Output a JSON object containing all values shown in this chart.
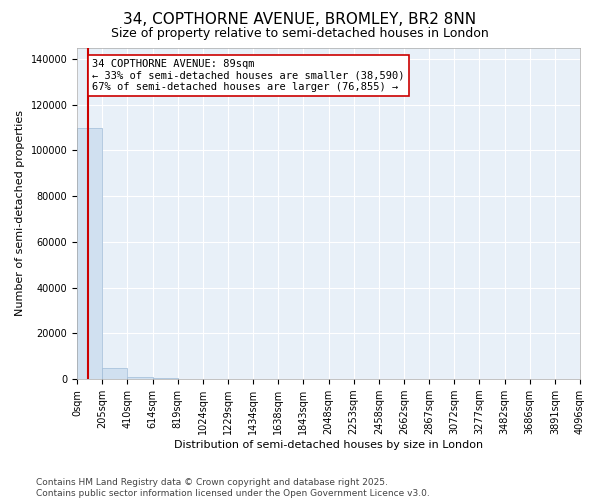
{
  "title": "34, COPTHORNE AVENUE, BROMLEY, BR2 8NN",
  "subtitle": "Size of property relative to semi-detached houses in London",
  "xlabel": "Distribution of semi-detached houses by size in London",
  "ylabel": "Number of semi-detached properties",
  "property_size": 89,
  "property_label": "34 COPTHORNE AVENUE: 89sqm",
  "pct_smaller": 33,
  "pct_larger": 67,
  "count_smaller": 38590,
  "count_larger": 76855,
  "bin_edges": [
    0,
    205,
    410,
    614,
    819,
    1024,
    1229,
    1434,
    1638,
    1843,
    2048,
    2253,
    2458,
    2662,
    2867,
    3072,
    3277,
    3482,
    3686,
    3891,
    4096
  ],
  "bin_heights": [
    110000,
    5000,
    800,
    300,
    150,
    80,
    60,
    45,
    35,
    28,
    22,
    18,
    15,
    13,
    11,
    10,
    9,
    8,
    7,
    6
  ],
  "bar_color": "#d0e0f0",
  "bar_edge_color": "#a0bcd8",
  "vline_color": "#cc0000",
  "annotation_box_color": "#ffffff",
  "annotation_box_edge_color": "#cc0000",
  "plot_bg_color": "#e8f0f8",
  "fig_bg_color": "#ffffff",
  "grid_color": "#ffffff",
  "ylim": [
    0,
    145000
  ],
  "yticks": [
    0,
    20000,
    40000,
    60000,
    80000,
    100000,
    120000,
    140000
  ],
  "footer_line1": "Contains HM Land Registry data © Crown copyright and database right 2025.",
  "footer_line2": "Contains public sector information licensed under the Open Government Licence v3.0.",
  "title_fontsize": 11,
  "subtitle_fontsize": 9,
  "xlabel_fontsize": 8,
  "ylabel_fontsize": 8,
  "tick_fontsize": 7,
  "annotation_fontsize": 7.5,
  "footer_fontsize": 6.5
}
